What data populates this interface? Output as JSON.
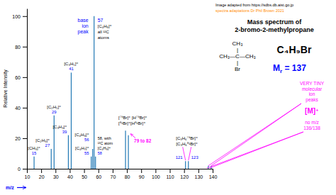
{
  "chart_data": {
    "type": "stem",
    "title": "Mass spectrum of",
    "subtitle": "2-bromo-2-methylpropane",
    "xlabel": "m/z",
    "ylabel": "Relative Intensity",
    "x": [
      15,
      27,
      29,
      39,
      41,
      55,
      56,
      57,
      58,
      79,
      81,
      121,
      123,
      137,
      139
    ],
    "values": [
      8,
      13,
      35,
      22,
      63,
      8,
      13,
      100,
      8,
      25,
      22,
      5,
      5,
      2,
      2
    ],
    "xlim": [
      10,
      140
    ],
    "ylim": [
      0,
      105
    ],
    "xticks": [
      10,
      20,
      30,
      40,
      50,
      60,
      70,
      80,
      90,
      100,
      110,
      120,
      130,
      140
    ],
    "yticks": [
      0,
      20,
      40,
      60,
      80,
      100
    ],
    "grid": false,
    "annotations": [
      "[CH₃]⁺",
      "15",
      "[C₂H₃]⁺",
      "27",
      "[C₂H₅]⁺",
      "29",
      "[C₃H₃]⁺",
      "39",
      "[C₃H₅]⁺",
      "41",
      "[C₄H₇]⁺",
      "55",
      "[C₄H₈]⁺",
      "56",
      "base",
      "ion",
      "peak",
      "57",
      "[C₄H₉]⁺",
      "all ¹²C",
      "atoms",
      "58, with",
      "¹³C atom",
      "[C₄H₉]⁺",
      "58",
      "[⁷⁹Br]⁺ [H⁷⁹Br]⁺",
      "[⁸¹Br]⁺[H⁸¹Br]⁺",
      "79 to 82",
      "[C₃H₆⁷⁹Br]⁺",
      "121",
      "[C₃H₆⁸¹Br]⁺",
      "123",
      "Image adapted from https://sdbs.db.aist.go.jp",
      "spectra adaptations Dr Phil Brown 2021",
      "CH₃",
      "|",
      "CH₃—C—CH₃",
      "|",
      "Br",
      "C₄H₉Br",
      "M",
      "r",
      " = 137",
      "VERY TINY\nmolecular\nion\npeaks",
      "[M]",
      "⁺",
      "no m/z\n136/138"
    ]
  }
}
